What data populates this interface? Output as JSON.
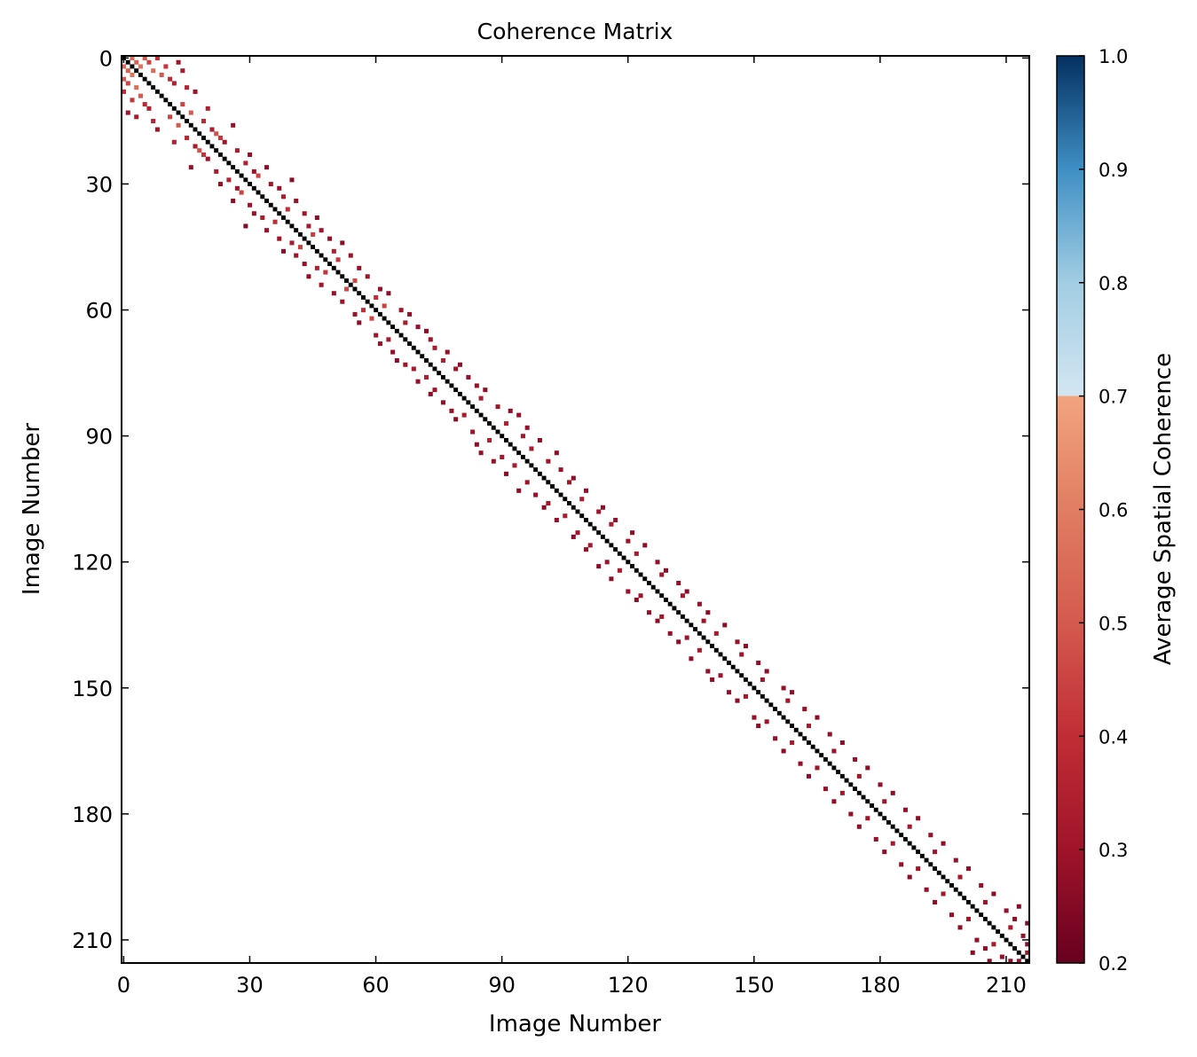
{
  "chart_data": {
    "type": "heatmap",
    "title": "Coherence Matrix",
    "xlabel": "Image Number",
    "ylabel": "Image Number",
    "n_images": 216,
    "xlim": [
      0,
      216
    ],
    "ylim": [
      216,
      0
    ],
    "x_ticks": [
      "0",
      "30",
      "60",
      "90",
      "120",
      "150",
      "180",
      "210"
    ],
    "y_ticks": [
      "0",
      "30",
      "60",
      "90",
      "120",
      "150",
      "180",
      "210"
    ],
    "tick_values": [
      0,
      30,
      60,
      90,
      120,
      150,
      180,
      210
    ],
    "grid": false,
    "diagonal_value": 1.0,
    "diagonal_color": "#000000",
    "masked_below": 0.2,
    "masked_color": "#ffffff",
    "colorbar": {
      "label": "Average Spatial Coherence",
      "range": [
        0.2,
        1.0
      ],
      "ticks": [
        "0.2",
        "0.3",
        "0.4",
        "0.5",
        "0.6",
        "0.7",
        "0.8",
        "0.9",
        "1.0"
      ],
      "tick_values": [
        0.2,
        0.3,
        0.4,
        0.5,
        0.6,
        0.7,
        0.8,
        0.9,
        1.0
      ],
      "colormap": "RdBu",
      "color_stops": [
        {
          "v": 0.2,
          "c": "#67001f"
        },
        {
          "v": 0.3,
          "c": "#a0142a"
        },
        {
          "v": 0.4,
          "c": "#c12d35"
        },
        {
          "v": 0.5,
          "c": "#d45a4f"
        },
        {
          "v": 0.6,
          "c": "#e07d62"
        },
        {
          "v": 0.7,
          "c": "#f2a47f"
        },
        {
          "v": 0.7001,
          "c": "#d3e6f1"
        },
        {
          "v": 0.8,
          "c": "#a2cde3"
        },
        {
          "v": 0.9,
          "c": "#3f8fc4"
        },
        {
          "v": 1.0,
          "c": "#053061"
        }
      ]
    },
    "cells": [
      [
        0,
        2,
        0.55
      ],
      [
        2,
        0,
        0.55
      ],
      [
        0,
        5,
        0.5
      ],
      [
        5,
        0,
        0.5
      ],
      [
        1,
        3,
        0.52
      ],
      [
        3,
        1,
        0.52
      ],
      [
        2,
        4,
        0.58
      ],
      [
        4,
        2,
        0.58
      ],
      [
        1,
        6,
        0.45
      ],
      [
        6,
        1,
        0.45
      ],
      [
        3,
        7,
        0.55
      ],
      [
        7,
        3,
        0.55
      ],
      [
        4,
        9,
        0.5
      ],
      [
        9,
        4,
        0.5
      ],
      [
        0,
        8,
        0.4
      ],
      [
        8,
        0,
        0.4
      ],
      [
        2,
        10,
        0.42
      ],
      [
        10,
        2,
        0.42
      ],
      [
        5,
        11,
        0.38
      ],
      [
        11,
        5,
        0.38
      ],
      [
        6,
        12,
        0.35
      ],
      [
        12,
        6,
        0.35
      ],
      [
        1,
        13,
        0.3
      ],
      [
        13,
        1,
        0.3
      ],
      [
        3,
        14,
        0.32
      ],
      [
        14,
        3,
        0.32
      ],
      [
        7,
        15,
        0.36
      ],
      [
        15,
        7,
        0.36
      ],
      [
        8,
        17,
        0.3
      ],
      [
        17,
        8,
        0.3
      ],
      [
        11,
        14,
        0.45
      ],
      [
        14,
        11,
        0.45
      ],
      [
        13,
        16,
        0.5
      ],
      [
        16,
        13,
        0.5
      ],
      [
        15,
        19,
        0.38
      ],
      [
        19,
        15,
        0.38
      ],
      [
        17,
        21,
        0.33
      ],
      [
        21,
        17,
        0.33
      ],
      [
        18,
        22,
        0.48
      ],
      [
        22,
        18,
        0.48
      ],
      [
        20,
        24,
        0.3
      ],
      [
        24,
        20,
        0.3
      ],
      [
        19,
        23,
        0.42
      ],
      [
        23,
        19,
        0.42
      ],
      [
        16,
        26,
        0.28
      ],
      [
        26,
        16,
        0.28
      ],
      [
        22,
        27,
        0.33
      ],
      [
        27,
        22,
        0.33
      ],
      [
        12,
        20,
        0.35
      ],
      [
        20,
        12,
        0.35
      ],
      [
        23,
        30,
        0.28
      ],
      [
        30,
        23,
        0.28
      ],
      [
        25,
        29,
        0.35
      ],
      [
        29,
        25,
        0.35
      ],
      [
        27,
        31,
        0.3
      ],
      [
        31,
        27,
        0.3
      ],
      [
        26,
        34,
        0.27
      ],
      [
        34,
        26,
        0.27
      ],
      [
        28,
        32,
        0.45
      ],
      [
        32,
        28,
        0.45
      ],
      [
        30,
        35,
        0.3
      ],
      [
        35,
        30,
        0.3
      ],
      [
        31,
        37,
        0.28
      ],
      [
        37,
        31,
        0.28
      ],
      [
        29,
        40,
        0.26
      ],
      [
        40,
        29,
        0.26
      ],
      [
        33,
        38,
        0.33
      ],
      [
        38,
        33,
        0.33
      ],
      [
        34,
        41,
        0.29
      ],
      [
        41,
        34,
        0.29
      ],
      [
        36,
        39,
        0.4
      ],
      [
        39,
        36,
        0.4
      ],
      [
        37,
        43,
        0.3
      ],
      [
        43,
        37,
        0.3
      ],
      [
        38,
        46,
        0.27
      ],
      [
        46,
        38,
        0.27
      ],
      [
        40,
        44,
        0.32
      ],
      [
        44,
        40,
        0.32
      ],
      [
        41,
        47,
        0.3
      ],
      [
        47,
        41,
        0.3
      ],
      [
        42,
        45,
        0.44
      ],
      [
        45,
        42,
        0.44
      ],
      [
        43,
        49,
        0.28
      ],
      [
        49,
        43,
        0.28
      ],
      [
        44,
        52,
        0.27
      ],
      [
        52,
        44,
        0.27
      ],
      [
        46,
        50,
        0.35
      ],
      [
        50,
        46,
        0.35
      ],
      [
        47,
        54,
        0.3
      ],
      [
        54,
        47,
        0.3
      ],
      [
        48,
        51,
        0.42
      ],
      [
        51,
        48,
        0.42
      ],
      [
        50,
        56,
        0.28
      ],
      [
        56,
        50,
        0.28
      ],
      [
        52,
        58,
        0.3
      ],
      [
        58,
        52,
        0.3
      ],
      [
        53,
        55,
        0.46
      ],
      [
        55,
        53,
        0.46
      ],
      [
        55,
        61,
        0.29
      ],
      [
        61,
        55,
        0.29
      ],
      [
        56,
        63,
        0.27
      ],
      [
        63,
        56,
        0.27
      ],
      [
        57,
        60,
        0.4
      ],
      [
        60,
        57,
        0.4
      ],
      [
        59,
        62,
        0.45
      ],
      [
        62,
        59,
        0.45
      ],
      [
        60,
        66,
        0.3
      ],
      [
        66,
        60,
        0.3
      ],
      [
        61,
        68,
        0.28
      ],
      [
        68,
        61,
        0.28
      ],
      [
        63,
        67,
        0.33
      ],
      [
        67,
        63,
        0.33
      ],
      [
        64,
        70,
        0.28
      ],
      [
        70,
        64,
        0.28
      ],
      [
        65,
        72,
        0.27
      ],
      [
        72,
        65,
        0.27
      ],
      [
        67,
        73,
        0.3
      ],
      [
        73,
        67,
        0.3
      ],
      [
        69,
        74,
        0.32
      ],
      [
        74,
        69,
        0.32
      ],
      [
        70,
        77,
        0.28
      ],
      [
        77,
        70,
        0.28
      ],
      [
        72,
        76,
        0.34
      ],
      [
        76,
        72,
        0.34
      ],
      [
        73,
        80,
        0.27
      ],
      [
        80,
        73,
        0.27
      ],
      [
        74,
        79,
        0.3
      ],
      [
        79,
        74,
        0.3
      ],
      [
        76,
        82,
        0.28
      ],
      [
        82,
        76,
        0.28
      ],
      [
        78,
        84,
        0.29
      ],
      [
        84,
        78,
        0.29
      ],
      [
        79,
        86,
        0.27
      ],
      [
        86,
        79,
        0.27
      ],
      [
        81,
        85,
        0.33
      ],
      [
        85,
        81,
        0.33
      ],
      [
        83,
        89,
        0.3
      ],
      [
        89,
        83,
        0.3
      ],
      [
        84,
        92,
        0.27
      ],
      [
        92,
        84,
        0.27
      ],
      [
        85,
        94,
        0.28
      ],
      [
        94,
        85,
        0.28
      ],
      [
        87,
        91,
        0.35
      ],
      [
        91,
        87,
        0.35
      ],
      [
        88,
        96,
        0.28
      ],
      [
        96,
        88,
        0.28
      ],
      [
        90,
        95,
        0.31
      ],
      [
        95,
        90,
        0.31
      ],
      [
        91,
        99,
        0.27
      ],
      [
        99,
        91,
        0.27
      ],
      [
        93,
        97,
        0.32
      ],
      [
        97,
        93,
        0.32
      ],
      [
        94,
        103,
        0.27
      ],
      [
        103,
        94,
        0.27
      ],
      [
        96,
        101,
        0.3
      ],
      [
        101,
        96,
        0.3
      ],
      [
        98,
        104,
        0.28
      ],
      [
        104,
        98,
        0.28
      ],
      [
        100,
        107,
        0.27
      ],
      [
        107,
        100,
        0.27
      ],
      [
        101,
        106,
        0.31
      ],
      [
        106,
        101,
        0.31
      ],
      [
        103,
        110,
        0.28
      ],
      [
        110,
        103,
        0.28
      ],
      [
        105,
        109,
        0.33
      ],
      [
        109,
        105,
        0.33
      ],
      [
        107,
        114,
        0.27
      ],
      [
        114,
        107,
        0.27
      ],
      [
        108,
        113,
        0.3
      ],
      [
        113,
        108,
        0.3
      ],
      [
        110,
        117,
        0.28
      ],
      [
        117,
        110,
        0.28
      ],
      [
        111,
        116,
        0.32
      ],
      [
        116,
        111,
        0.32
      ],
      [
        113,
        121,
        0.27
      ],
      [
        121,
        113,
        0.27
      ],
      [
        115,
        120,
        0.3
      ],
      [
        120,
        115,
        0.3
      ],
      [
        116,
        124,
        0.27
      ],
      [
        124,
        116,
        0.27
      ],
      [
        118,
        122,
        0.33
      ],
      [
        122,
        118,
        0.33
      ],
      [
        120,
        127,
        0.28
      ],
      [
        127,
        120,
        0.28
      ],
      [
        122,
        129,
        0.27
      ],
      [
        129,
        122,
        0.27
      ],
      [
        123,
        128,
        0.3
      ],
      [
        128,
        123,
        0.3
      ],
      [
        125,
        132,
        0.28
      ],
      [
        132,
        125,
        0.28
      ],
      [
        127,
        134,
        0.27
      ],
      [
        134,
        127,
        0.27
      ],
      [
        128,
        133,
        0.31
      ],
      [
        133,
        128,
        0.31
      ],
      [
        130,
        137,
        0.28
      ],
      [
        137,
        130,
        0.28
      ],
      [
        132,
        139,
        0.27
      ],
      [
        139,
        132,
        0.27
      ],
      [
        134,
        138,
        0.3
      ],
      [
        138,
        134,
        0.3
      ],
      [
        135,
        143,
        0.27
      ],
      [
        143,
        135,
        0.27
      ],
      [
        137,
        141,
        0.32
      ],
      [
        141,
        137,
        0.32
      ],
      [
        139,
        146,
        0.28
      ],
      [
        146,
        139,
        0.28
      ],
      [
        140,
        148,
        0.27
      ],
      [
        148,
        140,
        0.27
      ],
      [
        142,
        147,
        0.3
      ],
      [
        147,
        142,
        0.3
      ],
      [
        144,
        151,
        0.28
      ],
      [
        151,
        144,
        0.28
      ],
      [
        146,
        153,
        0.27
      ],
      [
        153,
        146,
        0.27
      ],
      [
        148,
        152,
        0.31
      ],
      [
        152,
        148,
        0.31
      ],
      [
        150,
        157,
        0.28
      ],
      [
        157,
        150,
        0.28
      ],
      [
        151,
        159,
        0.27
      ],
      [
        159,
        151,
        0.27
      ],
      [
        153,
        158,
        0.3
      ],
      [
        158,
        153,
        0.3
      ],
      [
        155,
        162,
        0.28
      ],
      [
        162,
        155,
        0.28
      ],
      [
        157,
        165,
        0.27
      ],
      [
        165,
        157,
        0.27
      ],
      [
        159,
        163,
        0.33
      ],
      [
        163,
        159,
        0.33
      ],
      [
        161,
        168,
        0.28
      ],
      [
        168,
        161,
        0.28
      ],
      [
        163,
        171,
        0.27
      ],
      [
        171,
        163,
        0.27
      ],
      [
        165,
        169,
        0.3
      ],
      [
        169,
        165,
        0.3
      ],
      [
        167,
        174,
        0.28
      ],
      [
        174,
        167,
        0.28
      ],
      [
        169,
        177,
        0.27
      ],
      [
        177,
        169,
        0.27
      ],
      [
        171,
        175,
        0.31
      ],
      [
        175,
        171,
        0.31
      ],
      [
        173,
        180,
        0.28
      ],
      [
        180,
        173,
        0.28
      ],
      [
        175,
        183,
        0.27
      ],
      [
        183,
        175,
        0.27
      ],
      [
        177,
        181,
        0.3
      ],
      [
        181,
        177,
        0.3
      ],
      [
        179,
        186,
        0.28
      ],
      [
        186,
        179,
        0.28
      ],
      [
        181,
        189,
        0.27
      ],
      [
        189,
        181,
        0.27
      ],
      [
        183,
        187,
        0.32
      ],
      [
        187,
        183,
        0.32
      ],
      [
        185,
        192,
        0.28
      ],
      [
        192,
        185,
        0.28
      ],
      [
        187,
        195,
        0.27
      ],
      [
        195,
        187,
        0.27
      ],
      [
        189,
        193,
        0.3
      ],
      [
        193,
        189,
        0.3
      ],
      [
        191,
        198,
        0.28
      ],
      [
        198,
        191,
        0.28
      ],
      [
        193,
        201,
        0.27
      ],
      [
        201,
        193,
        0.27
      ],
      [
        195,
        199,
        0.31
      ],
      [
        199,
        195,
        0.31
      ],
      [
        197,
        204,
        0.28
      ],
      [
        204,
        197,
        0.28
      ],
      [
        199,
        207,
        0.27
      ],
      [
        207,
        199,
        0.27
      ],
      [
        201,
        205,
        0.3
      ],
      [
        205,
        201,
        0.3
      ],
      [
        203,
        210,
        0.28
      ],
      [
        210,
        203,
        0.28
      ],
      [
        205,
        212,
        0.27
      ],
      [
        212,
        205,
        0.27
      ],
      [
        207,
        211,
        0.32
      ],
      [
        211,
        207,
        0.32
      ],
      [
        209,
        214,
        0.28
      ],
      [
        214,
        209,
        0.28
      ],
      [
        211,
        215,
        0.27
      ],
      [
        215,
        211,
        0.27
      ],
      [
        213,
        215,
        0.3
      ],
      [
        215,
        213,
        0.3
      ],
      [
        206,
        215,
        0.26
      ],
      [
        215,
        206,
        0.26
      ],
      [
        202,
        213,
        0.26
      ],
      [
        213,
        202,
        0.26
      ]
    ]
  }
}
